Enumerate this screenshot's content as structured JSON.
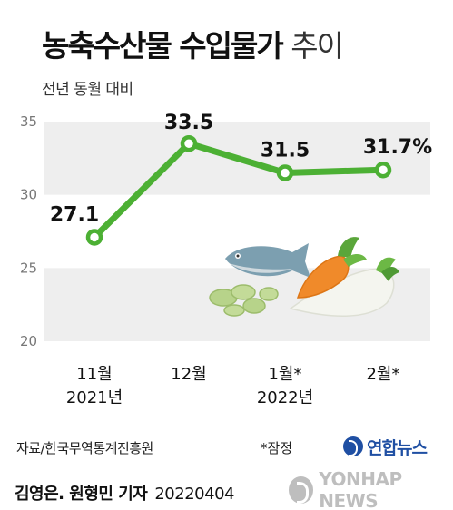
{
  "header": {
    "title_bold": "농축수산물 수입물가",
    "title_light": "추이",
    "subtitle": "전년 동월 대비"
  },
  "chart_data": {
    "type": "line",
    "categories": [
      [
        "11월",
        "2021년"
      ],
      [
        "12월",
        ""
      ],
      [
        "1월*",
        "2022년"
      ],
      [
        "2월*",
        ""
      ]
    ],
    "values": [
      27.1,
      33.5,
      31.5,
      31.7
    ],
    "data_labels": [
      "27.1",
      "33.5",
      "31.5",
      "31.7%"
    ],
    "yticks": [
      20,
      25,
      30,
      35
    ],
    "ylim": [
      20,
      35
    ],
    "grid": true,
    "line_color": "#4cb034",
    "band_color": "#eeeeee"
  },
  "footer": {
    "source": "자료/한국무역통계진흥원",
    "note": "*잠정",
    "logo_text": "연합뉴스"
  },
  "byline": {
    "authors": "김영은. 원형민 기자",
    "date": "20220404"
  },
  "watermark": {
    "text": "YONHAP NEWS"
  }
}
